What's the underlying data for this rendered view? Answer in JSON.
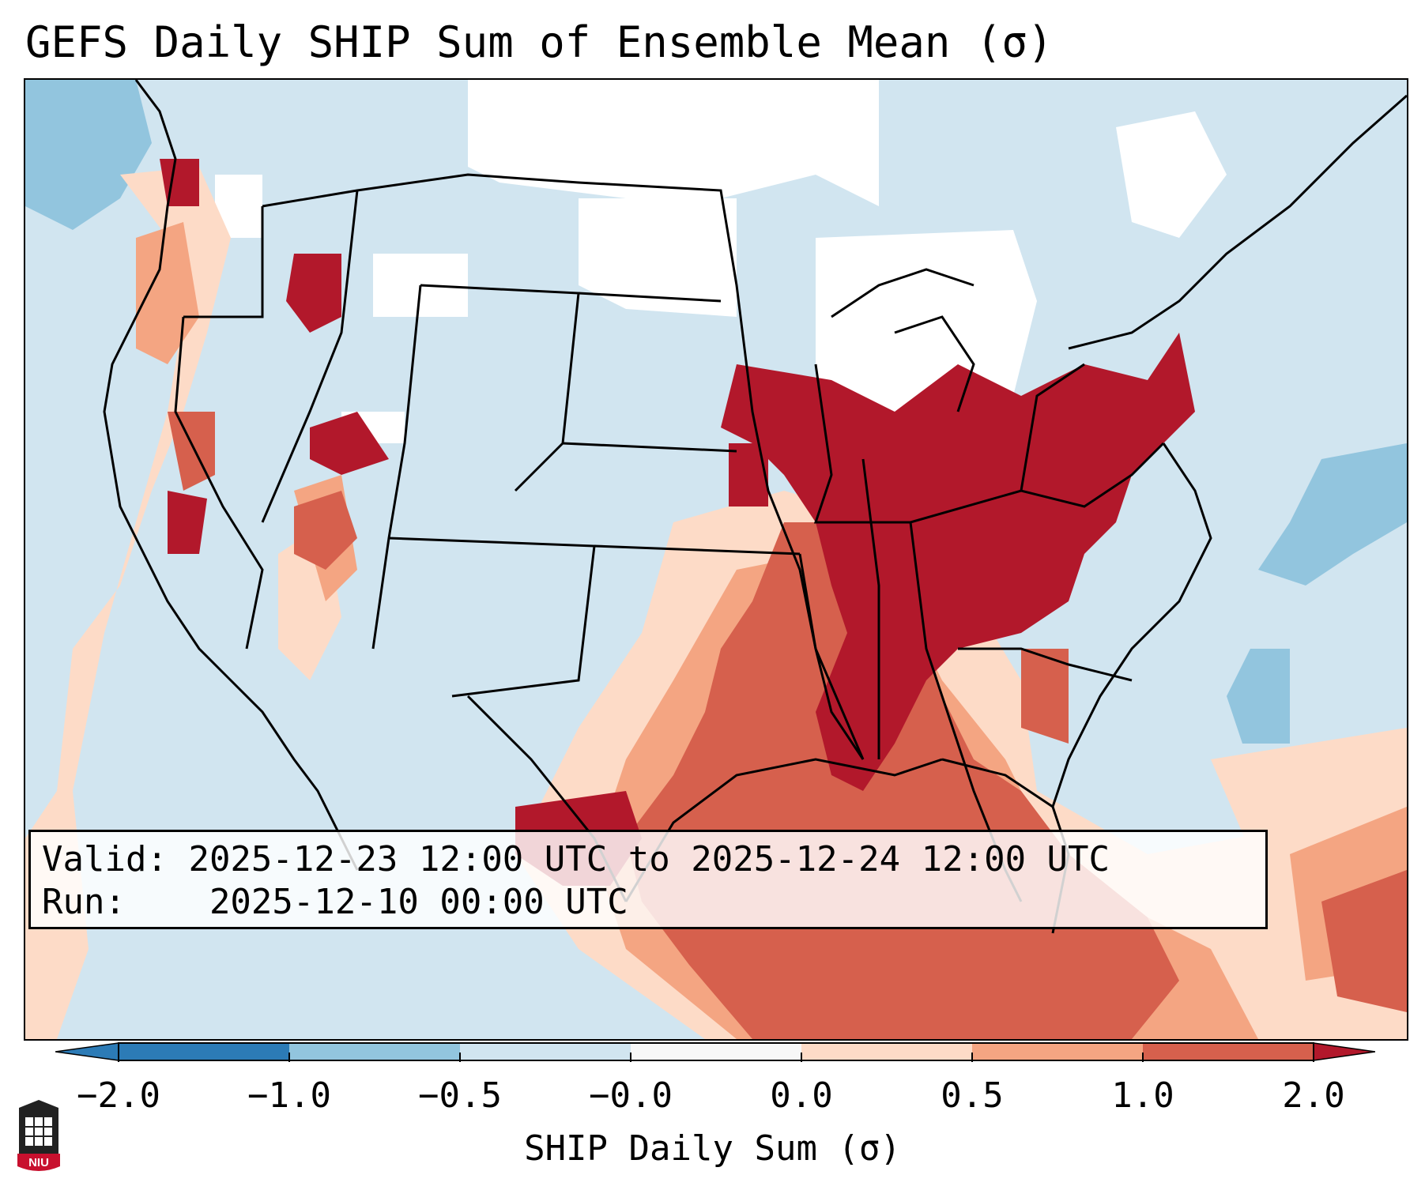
{
  "title": "GEFS Daily SHIP Sum of Ensemble Mean (σ)",
  "info": {
    "valid_label": "Valid:",
    "valid_value": "2025-12-23 12:00 UTC to 2025-12-24 12:00 UTC",
    "run_label": "Run:",
    "run_value": "2025-12-10 00:00 UTC"
  },
  "colorbar": {
    "label": "SHIP Daily Sum (σ)",
    "ticks": [
      "−2.0",
      "−1.0",
      "−0.5",
      "−0.0",
      "0.0",
      "0.5",
      "1.0",
      "2.0"
    ],
    "colors": [
      "#2c7bb6",
      "#92c5de",
      "#d1e5f0",
      "#f7f7f7",
      "#fddbc7",
      "#f4a582",
      "#d6604d",
      "#b2182b"
    ]
  },
  "logo": {
    "text": "NIU",
    "icon": "university-seal-icon"
  }
}
